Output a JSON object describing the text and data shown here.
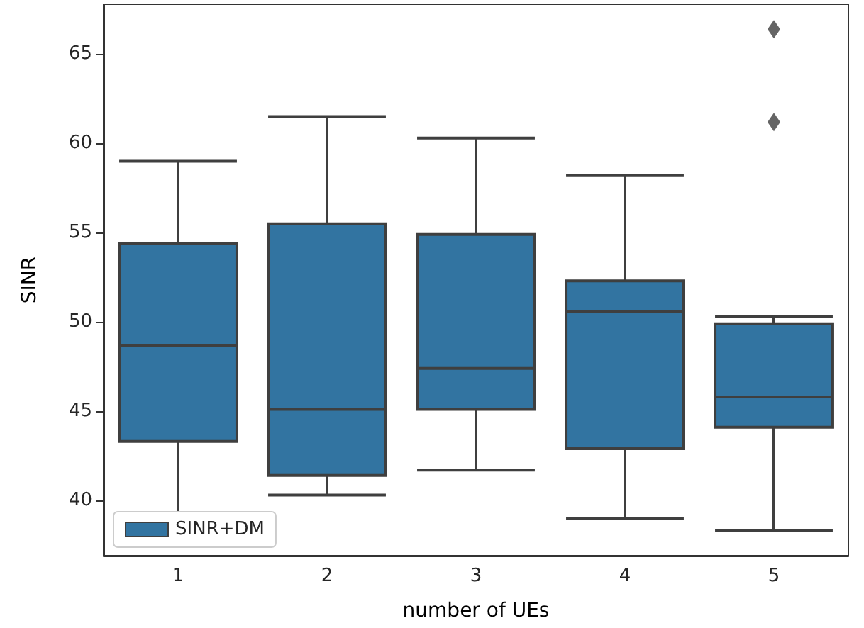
{
  "chart_data": {
    "type": "box",
    "xlabel": "number of UEs",
    "ylabel": "SINR",
    "categories": [
      "1",
      "2",
      "3",
      "4",
      "5"
    ],
    "series": [
      {
        "name": "SINR+DM",
        "color": "#3274a1",
        "boxes": [
          {
            "low": 38.8,
            "q1": 43.3,
            "median": 48.7,
            "q3": 54.4,
            "high": 59.0
          },
          {
            "low": 40.3,
            "q1": 41.4,
            "median": 45.1,
            "q3": 55.5,
            "high": 61.5
          },
          {
            "low": 41.7,
            "q1": 45.1,
            "median": 47.4,
            "q3": 54.9,
            "high": 60.3
          },
          {
            "low": 39.0,
            "q1": 42.9,
            "median": 50.6,
            "q3": 52.3,
            "high": 58.2
          },
          {
            "low": 38.3,
            "q1": 44.1,
            "median": 45.8,
            "q3": 49.9,
            "high": 50.3,
            "outliers": [
              66.4,
              61.2
            ]
          }
        ]
      }
    ],
    "ylim": [
      36.9,
      67.8
    ],
    "yticks": [
      40,
      45,
      50,
      55,
      60,
      65
    ],
    "grid": false,
    "legend": "bottom left"
  }
}
